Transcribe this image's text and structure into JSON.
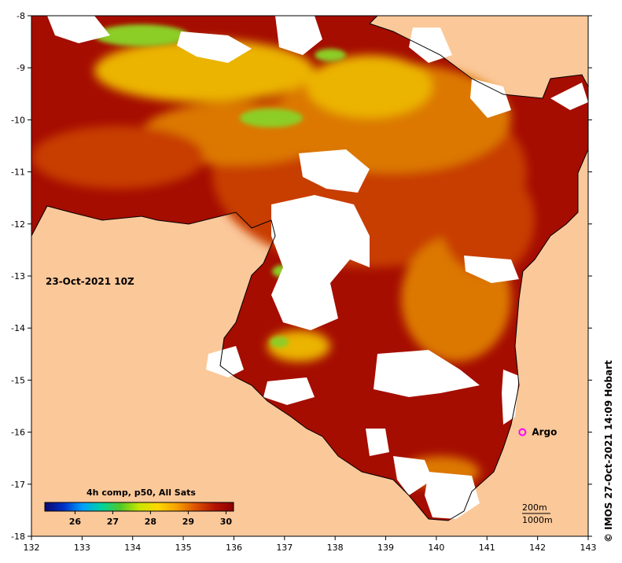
{
  "map": {
    "date_label": "23-Oct-2021 10Z",
    "credit": "© IMOS 27-Oct-2021 14:09 Hobart",
    "colorbar": {
      "title": "4h comp, p50, All Sats",
      "ticks": [
        "26",
        "27",
        "28",
        "29",
        "30"
      ],
      "min": 25.2,
      "max": 30.2,
      "colors": [
        "#0a0a6e",
        "#0030c8",
        "#00a0ff",
        "#00d2a0",
        "#50c828",
        "#c8e600",
        "#ffd700",
        "#f5a000",
        "#dc5000",
        "#b41400",
        "#8c0000"
      ]
    },
    "marker": {
      "label": "Argo",
      "lon": 141.7,
      "lat": -16.0,
      "color": "#ff00ff"
    },
    "scale_labels": [
      "200m",
      "1000m"
    ],
    "x_ticks": [
      "132",
      "133",
      "134",
      "135",
      "136",
      "137",
      "138",
      "139",
      "140",
      "141",
      "142",
      "143"
    ],
    "y_ticks": [
      "-8",
      "-9",
      "-10",
      "-11",
      "-12",
      "-13",
      "-14",
      "-15",
      "-16",
      "-17",
      "-18"
    ],
    "colors": {
      "land": "#fbc89a",
      "cloud": "#ffffff",
      "sst_hot": "#a50d00",
      "sst_warm": "#c83c00",
      "sst_mid": "#dc7800",
      "sst_cool": "#ebb400",
      "sst_green": "#8ccd28",
      "coast": "#000000"
    }
  }
}
